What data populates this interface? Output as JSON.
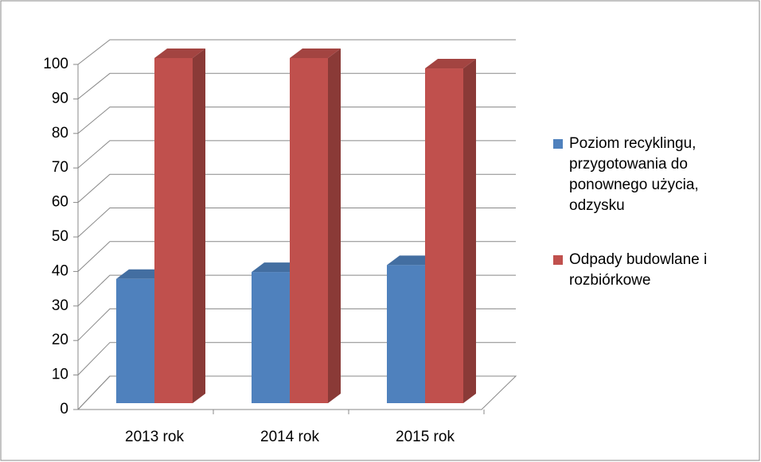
{
  "chart_data": {
    "type": "bar3d",
    "categories": [
      "2013 rok",
      "2014 rok",
      "2015 rok"
    ],
    "series": [
      {
        "name": "Poziom recyklingu, przygotowania do ponownego użycia, odzysku",
        "color": "#4f81bd",
        "values": [
          36,
          38,
          40
        ]
      },
      {
        "name": "Odpady budowlane i rozbiórkowe",
        "color": "#c0504d",
        "values": [
          100,
          100,
          97
        ]
      }
    ],
    "ylim": [
      0,
      100
    ],
    "yticks": [
      0,
      10,
      20,
      30,
      40,
      50,
      60,
      70,
      80,
      90,
      100
    ],
    "grid": true,
    "legend": "right"
  }
}
